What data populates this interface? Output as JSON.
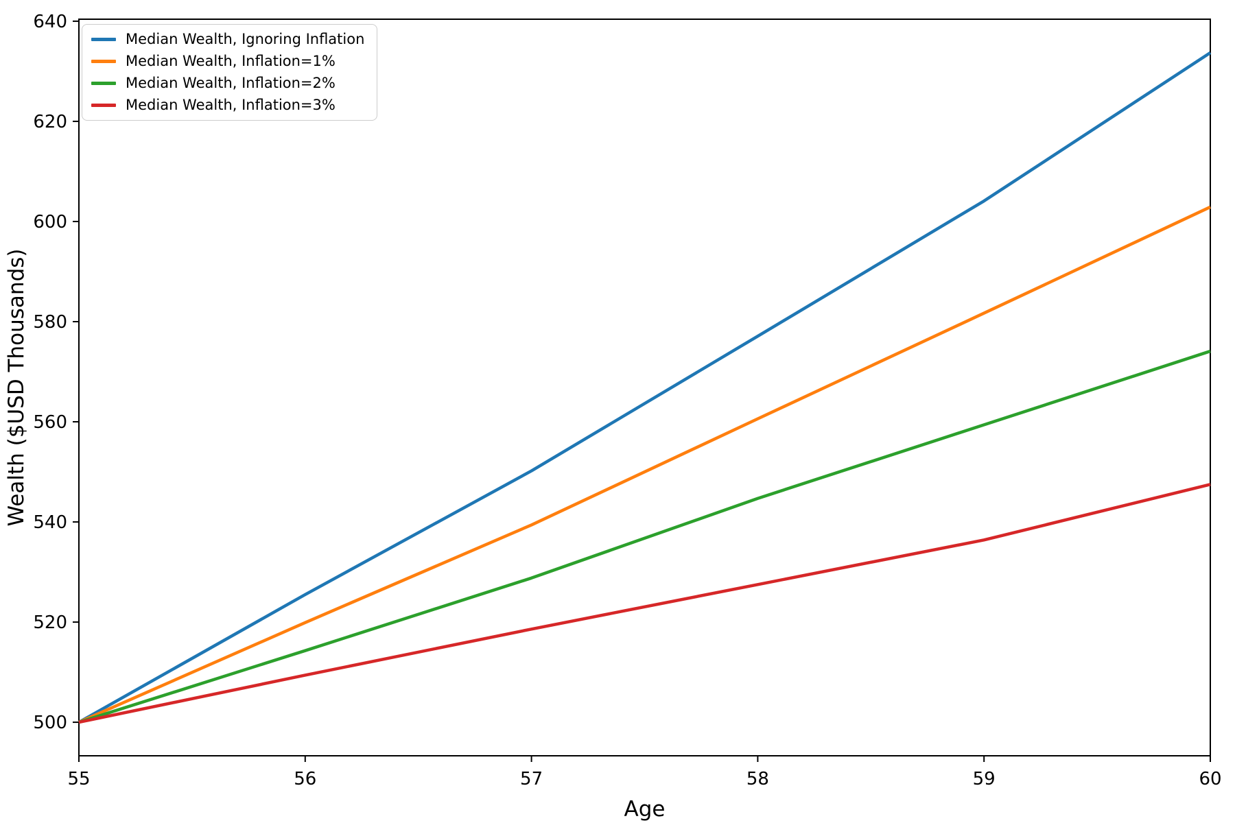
{
  "chart_data": {
    "type": "line",
    "title": "",
    "xlabel": "Age",
    "ylabel": "Wealth ($USD Thousands)",
    "x": [
      55,
      56,
      57,
      58,
      59,
      60
    ],
    "xticks": [
      55,
      56,
      57,
      58,
      59,
      60
    ],
    "yticks": [
      500,
      520,
      540,
      560,
      580,
      600,
      620,
      640
    ],
    "xlim": [
      55,
      60
    ],
    "ylim": [
      493.3,
      640.4
    ],
    "grid": false,
    "legend_position": "upper-left",
    "axis_color": "#000000",
    "series": [
      {
        "name": "Median Wealth, Ignoring Inflation",
        "color": "#1f77b4",
        "values": [
          500.0,
          525.5,
          550.2,
          577.1,
          604.1,
          633.7
        ]
      },
      {
        "name": "Median Wealth, Inflation=1%",
        "color": "#ff7f0e",
        "values": [
          500.0,
          519.9,
          539.4,
          560.6,
          581.7,
          602.9
        ]
      },
      {
        "name": "Median Wealth, Inflation=2%",
        "color": "#2ca02c",
        "values": [
          500.0,
          514.3,
          528.8,
          544.7,
          559.4,
          574.1
        ]
      },
      {
        "name": "Median Wealth, Inflation=3%",
        "color": "#d62728",
        "values": [
          500.0,
          509.4,
          518.6,
          527.5,
          536.4,
          547.5
        ]
      }
    ]
  }
}
